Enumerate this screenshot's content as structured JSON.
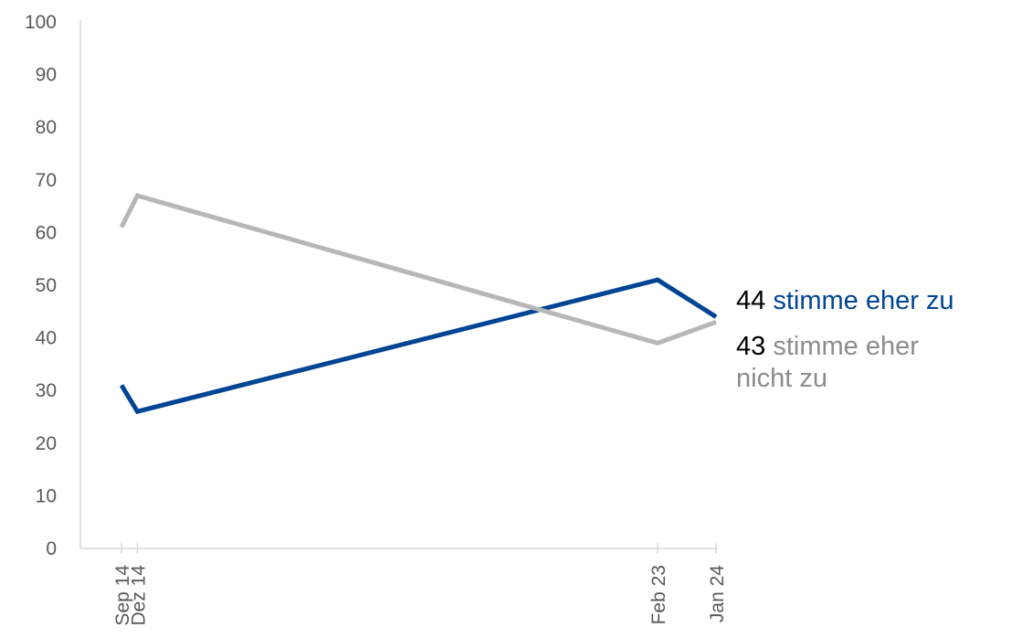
{
  "chart_data": {
    "type": "line",
    "title": "",
    "xlabel": "",
    "ylabel": "",
    "ylim": [
      0,
      100
    ],
    "y_ticks": [
      "0",
      "10",
      "20",
      "30",
      "40",
      "50",
      "60",
      "70",
      "80",
      "90",
      "100"
    ],
    "x": [
      "2014-09",
      "2014-12",
      "2023-02",
      "2024-01"
    ],
    "x_tick_labels": [
      "Sep 14",
      "Dez 14",
      "Feb 23",
      "Jan 24"
    ],
    "grid": false,
    "series": [
      {
        "name": "stimme eher zu",
        "color": "#004494",
        "values": [
          31,
          26,
          51,
          44
        ],
        "end_value": "44",
        "end_text": "stimme eher zu"
      },
      {
        "name": "stimme eher nicht zu",
        "color": "#b7b7b7",
        "values": [
          61,
          67,
          39,
          43
        ],
        "end_value": "43",
        "end_text_line1": "stimme eher",
        "end_text_line2": "nicht zu"
      }
    ]
  }
}
